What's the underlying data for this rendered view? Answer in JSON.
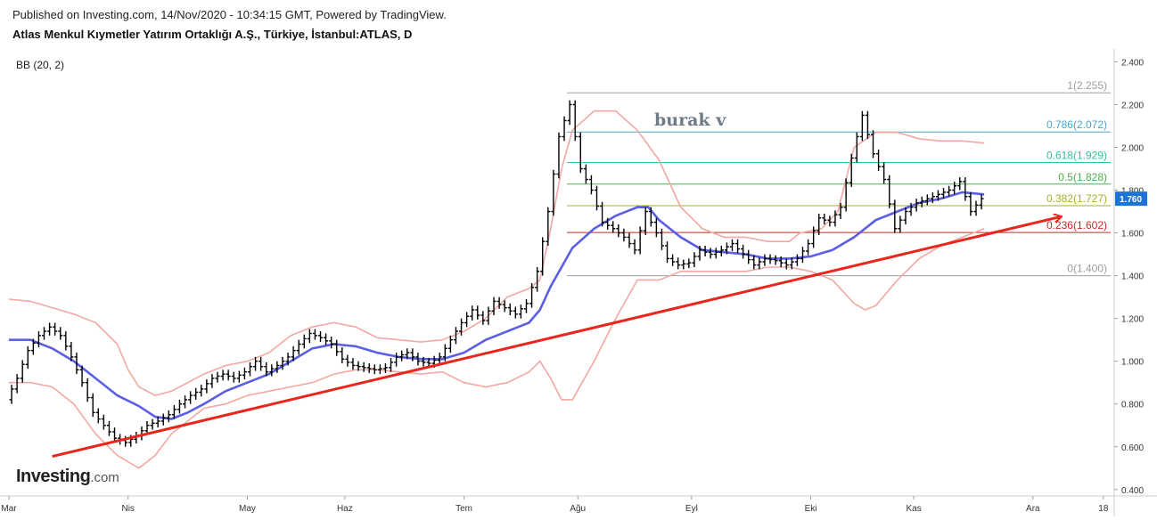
{
  "header": {
    "published": "Published on Investing.com, 14/Nov/2020 - 10:34:15 GMT, Powered by TradingView.",
    "instrument": "Atlas Menkul Kıymetler Yatırım Ortaklığı A.Ş., Türkiye, İstanbul:ATLAS, D"
  },
  "indicator": {
    "label": "BB (20, 2)"
  },
  "annotation": {
    "text": "burak v"
  },
  "logo": {
    "brand": "Investing",
    "suffix": ".com"
  },
  "colors": {
    "price": "#000000",
    "bb_basis": "#5b5fe6",
    "bb_bands": "#f2a8a2",
    "trendline": "#e8261c",
    "last_price_badge": "#1e74d6",
    "fib_1": "#9e9e9e",
    "fib_0786": "#4aa3cf",
    "fib_0618": "#2fc29a",
    "fib_05": "#4caf50",
    "fib_0382": "#a6b21f",
    "fib_0236": "#c62828",
    "fib_0": "#9e9e9e"
  },
  "chart_data": {
    "type": "line",
    "title": "Atlas Menkul Kıymetler Yatırım Ortaklığı A.Ş., Türkiye, İstanbul:ATLAS, D",
    "y_axis": {
      "ticks": [
        "2.400",
        "2.200",
        "2.000",
        "1.800",
        "1.600",
        "1.400",
        "1.200",
        "1.000",
        "0.800",
        "0.600",
        "0.400"
      ],
      "tick_values": [
        2.4,
        2.2,
        2.0,
        1.8,
        1.6,
        1.4,
        1.2,
        1.0,
        0.8,
        0.6,
        0.4
      ],
      "range": [
        0.37,
        2.46
      ],
      "position": "right"
    },
    "x_axis": {
      "ticks": [
        "Mar",
        "Nis",
        "May",
        "Haz",
        "Tem",
        "Ağu",
        "Eyl",
        "Eki",
        "Kas",
        "Ara",
        "18"
      ],
      "tick_index": [
        0,
        22,
        44,
        62,
        84,
        105,
        126,
        148,
        167,
        189,
        202
      ],
      "range": [
        0,
        204
      ]
    },
    "last_price": {
      "label": "1.760",
      "value": 1.76
    },
    "fibonacci": [
      {
        "ratio": "1",
        "label": "1(2.255)",
        "value": 2.255,
        "color_key": "fib_1"
      },
      {
        "ratio": "0.786",
        "label": "0.786(2.072)",
        "value": 2.072,
        "color_key": "fib_0786"
      },
      {
        "ratio": "0.618",
        "label": "0.618(1.929)",
        "value": 1.929,
        "color_key": "fib_0618"
      },
      {
        "ratio": "0.5",
        "label": "0.5(1.828)",
        "value": 1.828,
        "color_key": "fib_05"
      },
      {
        "ratio": "0.382",
        "label": "0.382(1.727)",
        "value": 1.727,
        "color_key": "fib_0382"
      },
      {
        "ratio": "0.236",
        "label": "0.236(1.602)",
        "value": 1.602,
        "color_key": "fib_0236"
      },
      {
        "ratio": "0",
        "label": "0(1.400)",
        "value": 1.4,
        "color_key": "fib_0"
      }
    ],
    "fib_start_index": 103,
    "trendline": {
      "start": {
        "index": 8,
        "value": 0.555
      },
      "end": {
        "index": 194,
        "value": 1.675
      },
      "arrow": true
    },
    "series": [
      {
        "name": "BB (20, 2)",
        "kind": "price",
        "points": [
          [
            0,
            0.82
          ],
          [
            2,
            0.92
          ],
          [
            4,
            1.05
          ],
          [
            6,
            1.12
          ],
          [
            8,
            1.16
          ],
          [
            10,
            1.12
          ],
          [
            12,
            1.02
          ],
          [
            14,
            0.9
          ],
          [
            16,
            0.76
          ],
          [
            18,
            0.7
          ],
          [
            20,
            0.64
          ],
          [
            22,
            0.62
          ],
          [
            24,
            0.65
          ],
          [
            26,
            0.7
          ],
          [
            28,
            0.72
          ],
          [
            30,
            0.75
          ],
          [
            32,
            0.8
          ],
          [
            34,
            0.84
          ],
          [
            36,
            0.87
          ],
          [
            38,
            0.92
          ],
          [
            40,
            0.94
          ],
          [
            42,
            0.92
          ],
          [
            44,
            0.95
          ],
          [
            46,
            1.0
          ],
          [
            48,
            0.95
          ],
          [
            50,
            0.98
          ],
          [
            52,
            1.02
          ],
          [
            54,
            1.08
          ],
          [
            56,
            1.13
          ],
          [
            58,
            1.11
          ],
          [
            60,
            1.08
          ],
          [
            62,
            1.01
          ],
          [
            64,
            0.98
          ],
          [
            66,
            0.97
          ],
          [
            68,
            0.96
          ],
          [
            70,
            0.97
          ],
          [
            72,
            1.02
          ],
          [
            74,
            1.04
          ],
          [
            76,
            1.0
          ],
          [
            78,
            0.99
          ],
          [
            80,
            1.02
          ],
          [
            82,
            1.1
          ],
          [
            84,
            1.18
          ],
          [
            86,
            1.24
          ],
          [
            88,
            1.19
          ],
          [
            90,
            1.28
          ],
          [
            92,
            1.25
          ],
          [
            94,
            1.22
          ],
          [
            96,
            1.27
          ],
          [
            98,
            1.42
          ],
          [
            100,
            1.7
          ],
          [
            102,
            2.05
          ],
          [
            104,
            2.2
          ],
          [
            106,
            1.9
          ],
          [
            108,
            1.8
          ],
          [
            110,
            1.65
          ],
          [
            112,
            1.62
          ],
          [
            114,
            1.58
          ],
          [
            116,
            1.52
          ],
          [
            118,
            1.7
          ],
          [
            120,
            1.6
          ],
          [
            122,
            1.48
          ],
          [
            124,
            1.45
          ],
          [
            126,
            1.46
          ],
          [
            128,
            1.52
          ],
          [
            130,
            1.5
          ],
          [
            132,
            1.52
          ],
          [
            134,
            1.55
          ],
          [
            136,
            1.5
          ],
          [
            138,
            1.45
          ],
          [
            140,
            1.48
          ],
          [
            142,
            1.47
          ],
          [
            144,
            1.45
          ],
          [
            146,
            1.48
          ],
          [
            148,
            1.55
          ],
          [
            150,
            1.67
          ],
          [
            152,
            1.65
          ],
          [
            154,
            1.72
          ],
          [
            156,
            1.95
          ],
          [
            158,
            2.15
          ],
          [
            160,
            1.97
          ],
          [
            162,
            1.85
          ],
          [
            164,
            1.62
          ],
          [
            166,
            1.7
          ],
          [
            168,
            1.74
          ],
          [
            170,
            1.76
          ],
          [
            172,
            1.78
          ],
          [
            174,
            1.8
          ],
          [
            176,
            1.84
          ],
          [
            178,
            1.7
          ],
          [
            180,
            1.76
          ]
        ]
      },
      {
        "name": "BB basis",
        "kind": "basis",
        "points": [
          [
            0,
            1.1
          ],
          [
            4,
            1.1
          ],
          [
            8,
            1.06
          ],
          [
            12,
            1.0
          ],
          [
            16,
            0.92
          ],
          [
            20,
            0.84
          ],
          [
            24,
            0.79
          ],
          [
            27,
            0.74
          ],
          [
            30,
            0.73
          ],
          [
            33,
            0.76
          ],
          [
            36,
            0.8
          ],
          [
            40,
            0.86
          ],
          [
            44,
            0.9
          ],
          [
            48,
            0.94
          ],
          [
            52,
            1.0
          ],
          [
            56,
            1.06
          ],
          [
            60,
            1.08
          ],
          [
            64,
            1.07
          ],
          [
            68,
            1.04
          ],
          [
            72,
            1.02
          ],
          [
            76,
            1.01
          ],
          [
            80,
            1.01
          ],
          [
            84,
            1.04
          ],
          [
            88,
            1.1
          ],
          [
            92,
            1.14
          ],
          [
            96,
            1.18
          ],
          [
            98,
            1.24
          ],
          [
            100,
            1.35
          ],
          [
            104,
            1.53
          ],
          [
            108,
            1.62
          ],
          [
            112,
            1.68
          ],
          [
            116,
            1.72
          ],
          [
            118,
            1.72
          ],
          [
            120,
            1.66
          ],
          [
            124,
            1.58
          ],
          [
            128,
            1.52
          ],
          [
            132,
            1.51
          ],
          [
            136,
            1.5
          ],
          [
            140,
            1.48
          ],
          [
            144,
            1.48
          ],
          [
            148,
            1.49
          ],
          [
            152,
            1.52
          ],
          [
            156,
            1.58
          ],
          [
            160,
            1.66
          ],
          [
            164,
            1.7
          ],
          [
            168,
            1.74
          ],
          [
            172,
            1.76
          ],
          [
            176,
            1.79
          ],
          [
            180,
            1.78
          ]
        ]
      },
      {
        "name": "BB upper",
        "kind": "upper",
        "points": [
          [
            0,
            1.29
          ],
          [
            4,
            1.28
          ],
          [
            8,
            1.25
          ],
          [
            12,
            1.22
          ],
          [
            16,
            1.18
          ],
          [
            20,
            1.08
          ],
          [
            22,
            0.96
          ],
          [
            24,
            0.88
          ],
          [
            27,
            0.84
          ],
          [
            30,
            0.86
          ],
          [
            33,
            0.9
          ],
          [
            36,
            0.94
          ],
          [
            40,
            0.98
          ],
          [
            44,
            1.0
          ],
          [
            48,
            1.04
          ],
          [
            52,
            1.12
          ],
          [
            56,
            1.16
          ],
          [
            60,
            1.18
          ],
          [
            64,
            1.16
          ],
          [
            68,
            1.11
          ],
          [
            72,
            1.1
          ],
          [
            76,
            1.09
          ],
          [
            80,
            1.1
          ],
          [
            84,
            1.14
          ],
          [
            88,
            1.2
          ],
          [
            92,
            1.3
          ],
          [
            96,
            1.34
          ],
          [
            98,
            1.38
          ],
          [
            100,
            1.62
          ],
          [
            102,
            1.9
          ],
          [
            104,
            2.08
          ],
          [
            108,
            2.17
          ],
          [
            112,
            2.17
          ],
          [
            116,
            2.08
          ],
          [
            120,
            1.94
          ],
          [
            124,
            1.72
          ],
          [
            128,
            1.62
          ],
          [
            132,
            1.58
          ],
          [
            136,
            1.58
          ],
          [
            140,
            1.56
          ],
          [
            144,
            1.56
          ],
          [
            146,
            1.6
          ],
          [
            150,
            1.62
          ],
          [
            153,
            1.7
          ],
          [
            156,
            2.0
          ],
          [
            160,
            2.07
          ],
          [
            164,
            2.07
          ],
          [
            168,
            2.04
          ],
          [
            172,
            2.03
          ],
          [
            176,
            2.03
          ],
          [
            180,
            2.02
          ]
        ]
      },
      {
        "name": "BB lower",
        "kind": "lower",
        "points": [
          [
            0,
            0.9
          ],
          [
            4,
            0.9
          ],
          [
            8,
            0.88
          ],
          [
            12,
            0.8
          ],
          [
            16,
            0.66
          ],
          [
            20,
            0.56
          ],
          [
            24,
            0.5
          ],
          [
            27,
            0.56
          ],
          [
            30,
            0.66
          ],
          [
            33,
            0.72
          ],
          [
            36,
            0.78
          ],
          [
            40,
            0.8
          ],
          [
            44,
            0.84
          ],
          [
            48,
            0.86
          ],
          [
            52,
            0.88
          ],
          [
            56,
            0.9
          ],
          [
            60,
            0.94
          ],
          [
            64,
            0.96
          ],
          [
            68,
            0.96
          ],
          [
            72,
            0.95
          ],
          [
            76,
            0.94
          ],
          [
            80,
            0.95
          ],
          [
            84,
            0.9
          ],
          [
            88,
            0.88
          ],
          [
            92,
            0.9
          ],
          [
            96,
            0.95
          ],
          [
            98,
            1.0
          ],
          [
            100,
            0.92
          ],
          [
            102,
            0.82
          ],
          [
            104,
            0.82
          ],
          [
            108,
            1.0
          ],
          [
            112,
            1.2
          ],
          [
            116,
            1.38
          ],
          [
            120,
            1.38
          ],
          [
            124,
            1.42
          ],
          [
            128,
            1.42
          ],
          [
            132,
            1.42
          ],
          [
            136,
            1.42
          ],
          [
            140,
            1.44
          ],
          [
            144,
            1.44
          ],
          [
            148,
            1.42
          ],
          [
            152,
            1.38
          ],
          [
            156,
            1.27
          ],
          [
            158,
            1.24
          ],
          [
            160,
            1.26
          ],
          [
            164,
            1.38
          ],
          [
            168,
            1.48
          ],
          [
            172,
            1.54
          ],
          [
            176,
            1.58
          ],
          [
            180,
            1.62
          ]
        ]
      }
    ]
  }
}
